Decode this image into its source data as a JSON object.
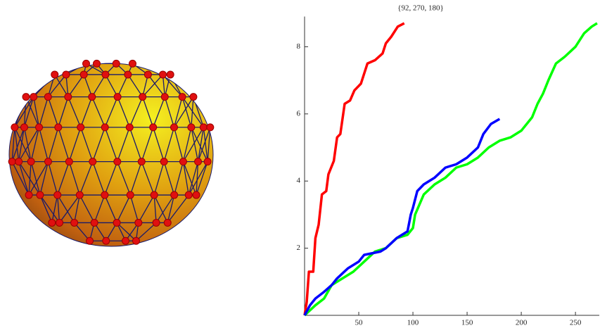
{
  "chart_data": {
    "type": "line",
    "title": "{92, 270, 180}",
    "xlim": [
      0,
      272
    ],
    "ylim": [
      0,
      8.9
    ],
    "xticks": [
      50,
      100,
      150,
      200,
      250
    ],
    "yticks": [
      2,
      4,
      6,
      8
    ],
    "series": [
      {
        "color": "#ff0000",
        "x": [
          0,
          2,
          4,
          8,
          10,
          13,
          16,
          20,
          22,
          27,
          30,
          33,
          37,
          42,
          46,
          52,
          58,
          65,
          72,
          75,
          80,
          86,
          92
        ],
        "values": [
          0,
          0.4,
          1.3,
          1.3,
          2.3,
          2.7,
          3.6,
          3.7,
          4.2,
          4.6,
          5.3,
          5.4,
          6.3,
          6.4,
          6.7,
          6.9,
          7.5,
          7.6,
          7.8,
          8.1,
          8.3,
          8.6,
          8.7
        ]
      },
      {
        "color": "#00ff00",
        "x": [
          0,
          10,
          18,
          25,
          35,
          45,
          55,
          65,
          75,
          85,
          95,
          100,
          102,
          110,
          120,
          130,
          140,
          150,
          160,
          170,
          180,
          190,
          200,
          210,
          215,
          220,
          225,
          232,
          240,
          250,
          258,
          265,
          270
        ],
        "values": [
          0,
          0.3,
          0.5,
          0.9,
          1.1,
          1.3,
          1.6,
          1.9,
          2.0,
          2.3,
          2.4,
          2.6,
          3.0,
          3.6,
          3.9,
          4.1,
          4.4,
          4.5,
          4.7,
          5.0,
          5.2,
          5.3,
          5.5,
          5.9,
          6.3,
          6.6,
          7.0,
          7.5,
          7.7,
          8.0,
          8.4,
          8.6,
          8.7
        ]
      },
      {
        "color": "#0000ff",
        "x": [
          0,
          5,
          10,
          18,
          25,
          30,
          40,
          50,
          55,
          70,
          75,
          85,
          95,
          98,
          100,
          104,
          110,
          120,
          130,
          140,
          150,
          160,
          165,
          172,
          180
        ],
        "values": [
          0,
          0.3,
          0.5,
          0.7,
          0.9,
          1.1,
          1.4,
          1.6,
          1.8,
          1.9,
          2.0,
          2.3,
          2.5,
          3.0,
          3.2,
          3.7,
          3.9,
          4.1,
          4.4,
          4.5,
          4.7,
          5.0,
          5.4,
          5.7,
          5.85
        ]
      }
    ]
  }
}
